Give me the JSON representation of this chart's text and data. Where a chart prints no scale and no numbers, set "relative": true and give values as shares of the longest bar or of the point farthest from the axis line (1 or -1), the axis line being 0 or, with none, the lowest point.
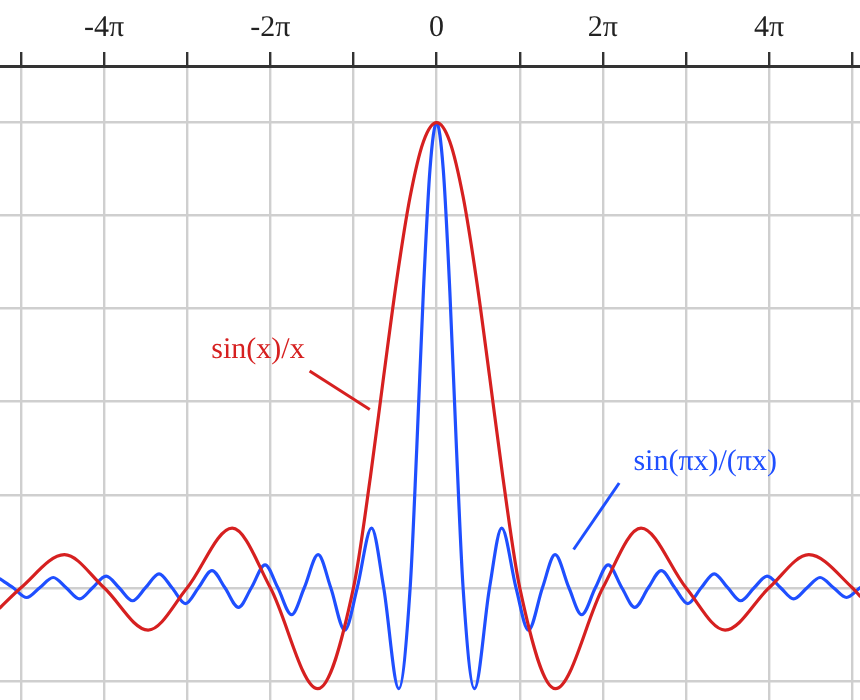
{
  "chart_data": {
    "type": "line",
    "relative": true,
    "grid": true,
    "legend": false,
    "marker": "none",
    "line_style": "solid",
    "tick_labels": "x",
    "xlim": [
      -16.5,
      16
    ],
    "xticks": [
      {
        "value": -15.708,
        "label": null
      },
      {
        "value": -12.566,
        "label": "-4π"
      },
      {
        "value": -9.425,
        "label": null
      },
      {
        "value": -6.283,
        "label": "-2π"
      },
      {
        "value": -3.142,
        "label": null
      },
      0,
      {
        "value": 3.142,
        "label": null
      },
      {
        "value": 6.283,
        "label": "2π"
      },
      {
        "value": 9.425,
        "label": null
      },
      {
        "value": 12.566,
        "label": "4π"
      },
      {
        "value": 15.708,
        "label": null
      }
    ],
    "series": [
      {
        "name": "sin(x)/x",
        "color": "#d62020",
        "x": [
          -16.5,
          -15.708,
          -14.066,
          -12.566,
          -10.904,
          -9.425,
          -7.725,
          -6.283,
          -4.493,
          -3.142,
          -2.5,
          -2,
          -1.5,
          -1,
          -0.5,
          0,
          0.5,
          1,
          1.5,
          2,
          2.5,
          3.142,
          4.493,
          6.283,
          7.725,
          9.425,
          10.904,
          12.566,
          14.066,
          15.708,
          16
        ],
        "values": [
          -0.043,
          0,
          0.071,
          0,
          -0.091,
          0,
          0.128,
          0,
          -0.217,
          0,
          0.239,
          0.455,
          0.665,
          0.841,
          0.959,
          1,
          0.959,
          0.841,
          0.665,
          0.455,
          0.239,
          0,
          -0.217,
          0,
          0.128,
          0,
          -0.091,
          0,
          0.071,
          0,
          -0.018
        ]
      },
      {
        "name": "sin(πx)/(πx)",
        "color": "#1f4fff",
        "x": [
          -16.5,
          -16,
          -15.49,
          -15,
          -14.49,
          -14,
          -13.49,
          -13,
          -12.49,
          -12,
          -11.49,
          -11,
          -10.49,
          -10,
          -9.49,
          -9,
          -8.489,
          -8,
          -7.487,
          -7,
          -6.484,
          -6,
          -5.482,
          -5,
          -4.477,
          -4,
          -3.471,
          -3,
          -2.459,
          -2,
          -1.43,
          -1,
          -0.75,
          -0.5,
          -0.25,
          0,
          0.25,
          0.5,
          0.75,
          1,
          1.43,
          2,
          2.459,
          3,
          3.471,
          4,
          4.477,
          5,
          5.482,
          6,
          6.484,
          7,
          7.487,
          8,
          8.489,
          9,
          9.49,
          10,
          10.49,
          11,
          11.49,
          12,
          12.49,
          13,
          13.49,
          14,
          14.49,
          15,
          15.49,
          16
        ],
        "values": [
          0.019,
          0,
          -0.021,
          0,
          0.022,
          0,
          -0.024,
          0,
          0.025,
          0,
          -0.028,
          0,
          0.03,
          0,
          -0.034,
          0,
          0.037,
          0,
          -0.042,
          0,
          0.049,
          0,
          -0.058,
          0,
          0.071,
          0,
          -0.091,
          0,
          0.128,
          0,
          -0.217,
          0,
          0.3,
          0.637,
          0.9,
          1,
          0.9,
          0.637,
          0.3,
          0,
          -0.217,
          0,
          0.128,
          0,
          -0.091,
          0,
          0.071,
          0,
          -0.058,
          0,
          0.049,
          0,
          -0.042,
          0,
          0.037,
          0,
          -0.034,
          0,
          0.03,
          0,
          -0.028,
          0,
          0.025,
          0,
          -0.024,
          0,
          0.022,
          0,
          -0.021,
          0
        ]
      }
    ]
  }
}
